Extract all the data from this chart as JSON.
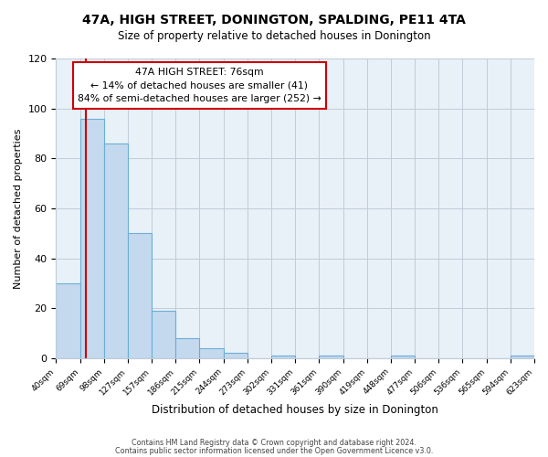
{
  "title": "47A, HIGH STREET, DONINGTON, SPALDING, PE11 4TA",
  "subtitle": "Size of property relative to detached houses in Donington",
  "xlabel": "Distribution of detached houses by size in Donington",
  "ylabel": "Number of detached properties",
  "all_values": [
    30,
    96,
    86,
    50,
    19,
    8,
    4,
    2,
    0,
    1,
    0,
    1,
    0,
    0,
    1,
    0,
    0,
    0,
    0,
    1
  ],
  "bin_labels": [
    "40sqm",
    "69sqm",
    "98sqm",
    "127sqm",
    "157sqm",
    "186sqm",
    "215sqm",
    "244sqm",
    "273sqm",
    "302sqm",
    "331sqm",
    "361sqm",
    "390sqm",
    "419sqm",
    "448sqm",
    "477sqm",
    "506sqm",
    "536sqm",
    "565sqm",
    "594sqm",
    "623sqm"
  ],
  "bar_color": "#c5d9ee",
  "bar_edge_color": "#6aaed6",
  "vline_color": "#cc0000",
  "vline_x": 1.24,
  "ylim": [
    0,
    120
  ],
  "yticks": [
    0,
    20,
    40,
    60,
    80,
    100,
    120
  ],
  "annotation_text": "47A HIGH STREET: 76sqm\n← 14% of detached houses are smaller (41)\n84% of semi-detached houses are larger (252) →",
  "annotation_box_color": "#ffffff",
  "annotation_box_edge_color": "#cc0000",
  "footer1": "Contains HM Land Registry data © Crown copyright and database right 2024.",
  "footer2": "Contains public sector information licensed under the Open Government Licence v3.0.",
  "background_color": "#ffffff",
  "plot_bg_color": "#e8f0f8",
  "grid_color": "#c0ccd8"
}
